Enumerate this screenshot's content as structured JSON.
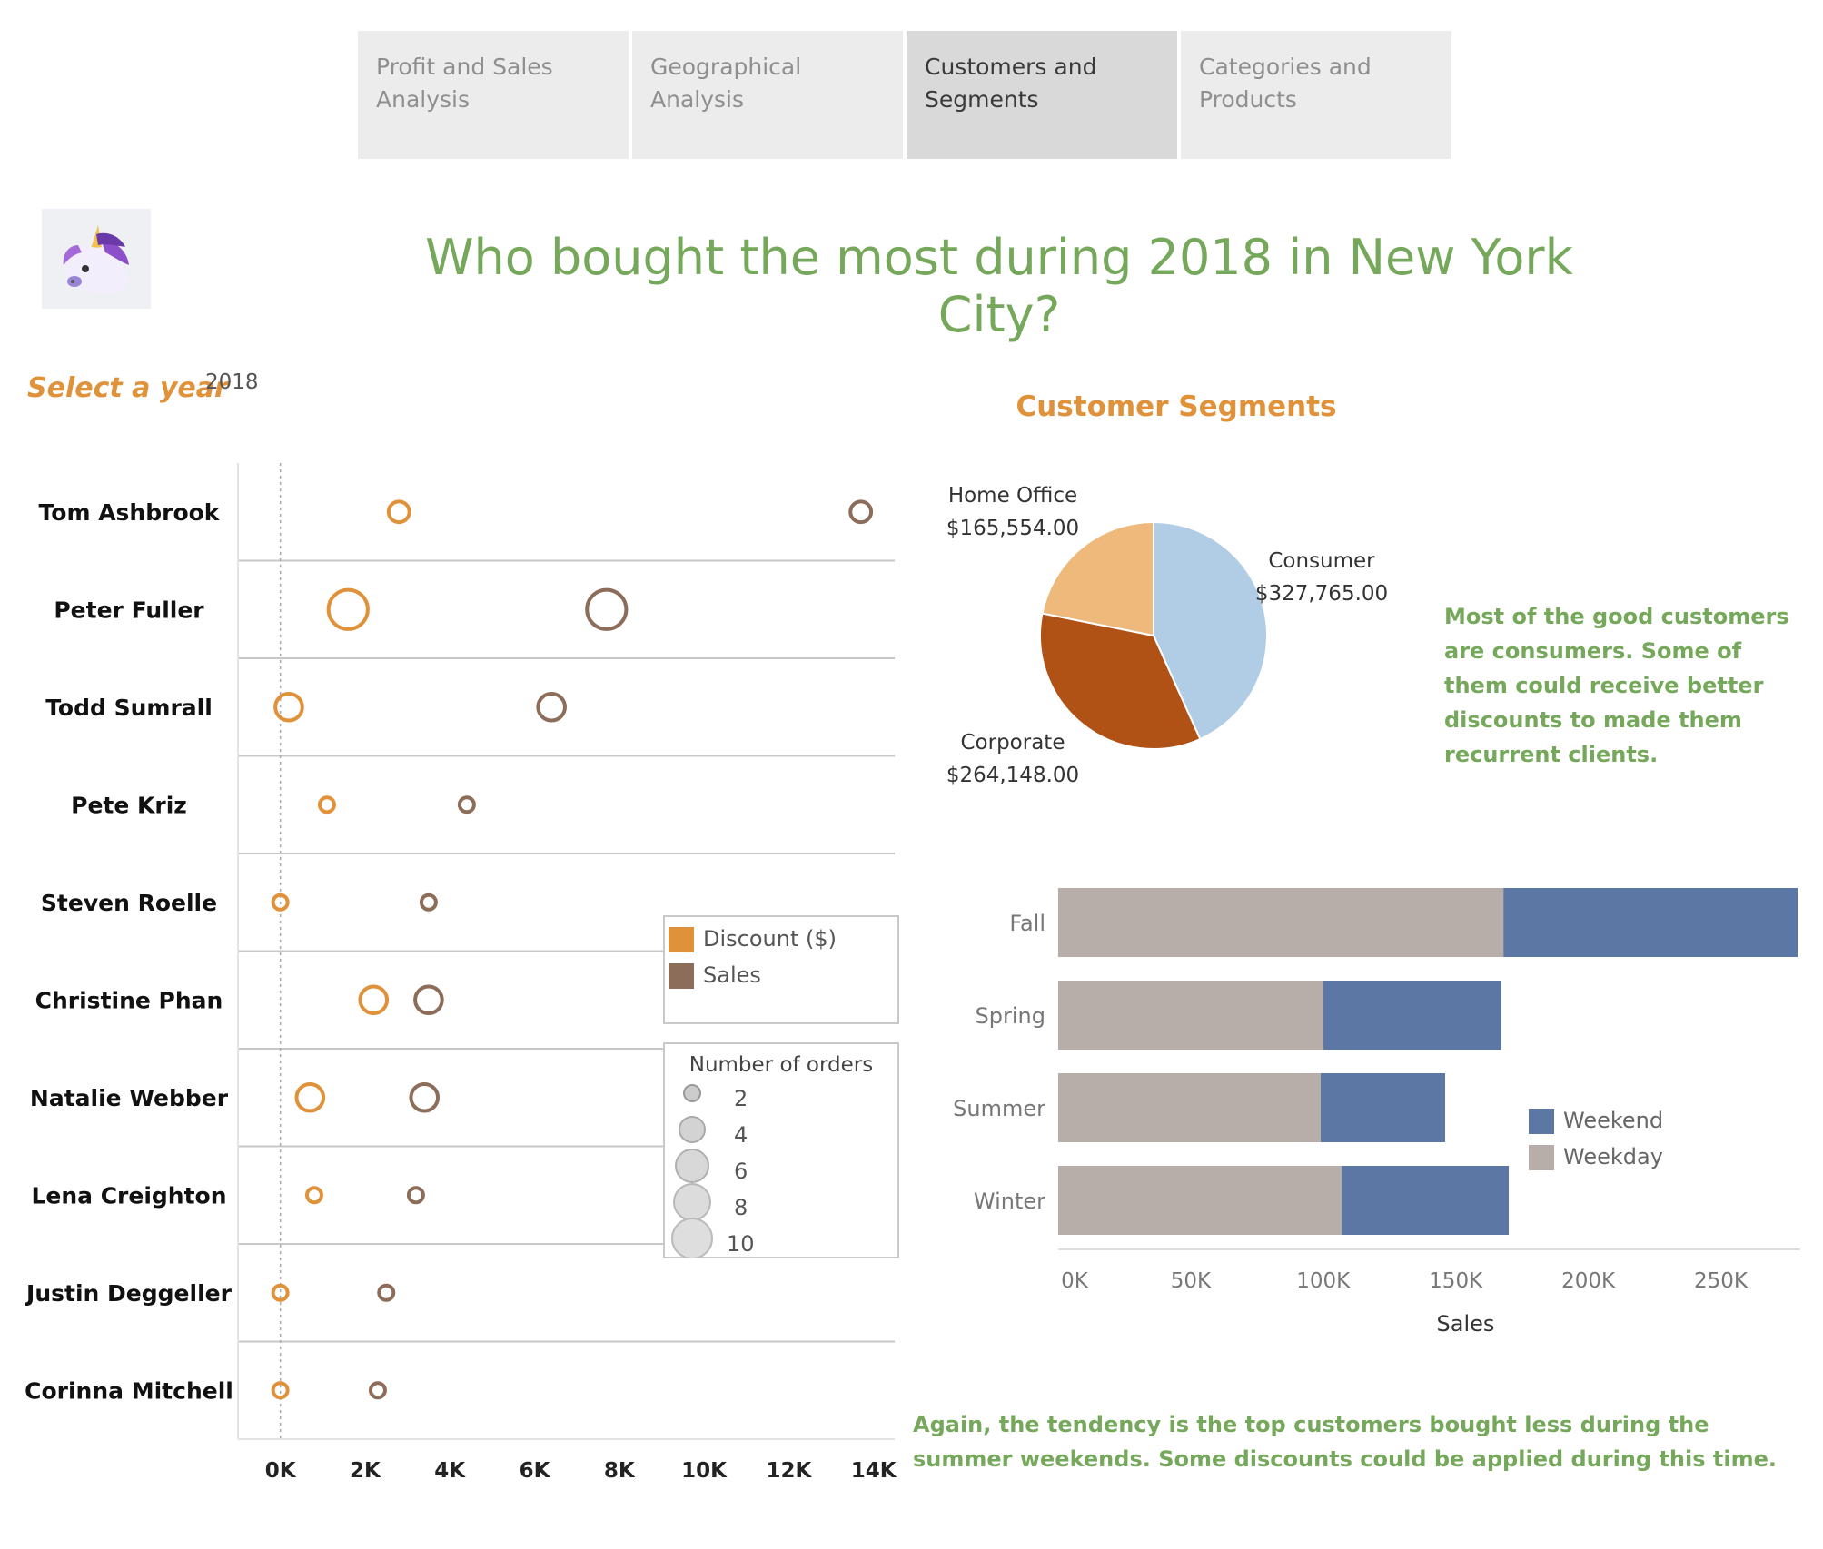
{
  "tabs": [
    {
      "label": "Profit and Sales Analysis",
      "active": false
    },
    {
      "label": "Geographical Analysis",
      "active": false
    },
    {
      "label": "Customers and Segments",
      "active": true
    },
    {
      "label": "Categories and Products",
      "active": false
    }
  ],
  "header": {
    "title": "Who bought the most during 2018 in New York City?",
    "logo_icon": "unicorn-icon"
  },
  "filter": {
    "label": "Select a year",
    "value": "2018"
  },
  "colors": {
    "discount": "#e0923a",
    "sales": "#8c6d5a",
    "title": "#76a85b",
    "consumer": "#b1cde6",
    "corporate": "#b05215",
    "home_office": "#eeb97a",
    "weekday": "#b7aeaa",
    "weekend": "#5c77a3"
  },
  "customers_legend": {
    "color_items": [
      "Discount ($)",
      "Sales"
    ],
    "size_title": "Number of orders",
    "size_items": [
      "2",
      "4",
      "6",
      "8",
      "10"
    ]
  },
  "segments": {
    "title": "Customer Segments",
    "labels": [
      {
        "name": "Home Office",
        "value": "$165,554.00"
      },
      {
        "name": "Consumer",
        "value": "$327,765.00"
      },
      {
        "name": "Corporate",
        "value": "$264,148.00"
      }
    ]
  },
  "notes": {
    "segments": "Most of the good customers are consumers. Some of them could receive better discounts to made them recurrent clients.",
    "seasons": "Again, the tendency is the top customers bought less during the summer weekends. Some discounts could be applied during this time."
  },
  "chart_data": [
    {
      "type": "scatter",
      "categories": [
        "Tom Ashbrook",
        "Peter Fuller",
        "Todd Sumrall",
        "Pete Kriz",
        "Steven Roelle",
        "Christine Phan",
        "Natalie Webber",
        "Lena Creighton",
        "Justin Deggeller",
        "Corinna Mitchell"
      ],
      "series": [
        {
          "name": "Discount ($)",
          "values": [
            2800,
            1600,
            200,
            1100,
            0,
            2200,
            700,
            800,
            0,
            0
          ],
          "orders": [
            4,
            10,
            6,
            2,
            2,
            6,
            6,
            2,
            2,
            2
          ]
        },
        {
          "name": "Sales",
          "values": [
            13700,
            7700,
            6400,
            4400,
            3500,
            3500,
            3400,
            3200,
            2500,
            2300
          ],
          "orders": [
            4,
            10,
            6,
            2,
            2,
            6,
            6,
            2,
            2,
            2
          ]
        }
      ],
      "xlim": [
        -1000,
        14500
      ],
      "xticks": [
        "0K",
        "2K",
        "4K",
        "6K",
        "8K",
        "10K",
        "12K",
        "14K"
      ],
      "xtick_values": [
        0,
        2000,
        4000,
        6000,
        8000,
        10000,
        12000,
        14000
      ]
    },
    {
      "type": "pie",
      "categories": [
        "Consumer",
        "Corporate",
        "Home Office"
      ],
      "values": [
        327765,
        264148,
        165554
      ]
    },
    {
      "type": "bar",
      "orientation": "horizontal",
      "stacked": true,
      "categories": [
        "Fall",
        "Spring",
        "Summer",
        "Winter"
      ],
      "series": [
        {
          "name": "Weekday",
          "values": [
            168000,
            100000,
            99000,
            107000
          ]
        },
        {
          "name": "Weekend",
          "values": [
            111000,
            67000,
            47000,
            63000
          ]
        }
      ],
      "xlim": [
        0,
        280000
      ],
      "xticks": [
        "0K",
        "50K",
        "100K",
        "150K",
        "200K",
        "250K"
      ],
      "xtick_values": [
        0,
        50000,
        100000,
        150000,
        200000,
        250000
      ],
      "xlabel": "Sales",
      "legend": [
        "Weekend",
        "Weekday"
      ]
    }
  ]
}
